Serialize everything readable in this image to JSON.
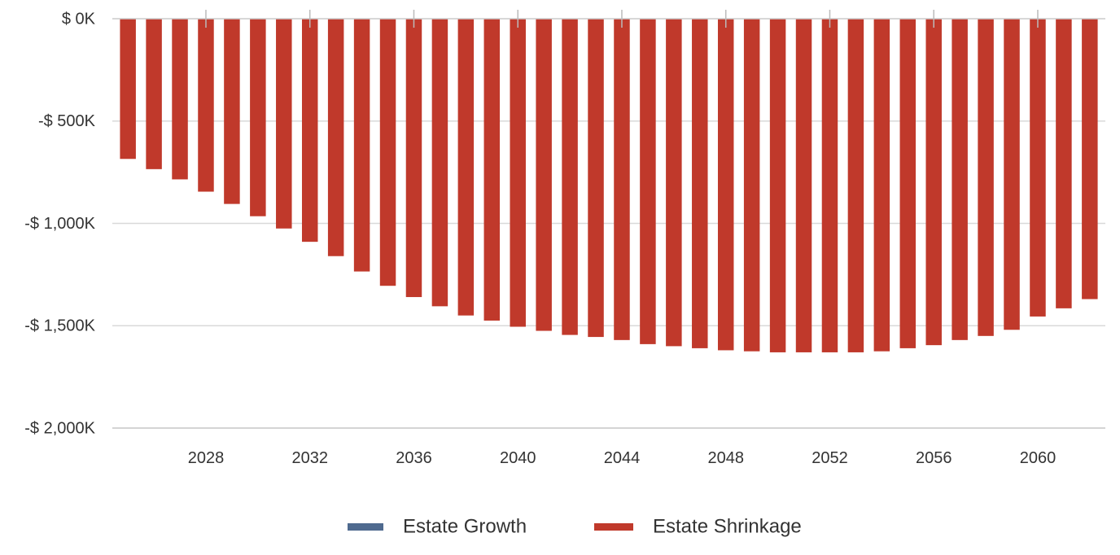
{
  "chart_data": {
    "type": "bar",
    "title": "",
    "xlabel": "",
    "ylabel": "",
    "ylim": [
      -2000,
      0
    ],
    "yticks": [
      0,
      -500,
      -1000,
      -1500,
      -2000
    ],
    "ytick_labels": [
      "$ 0K",
      "-$ 500K",
      "-$ 1,000K",
      "-$ 1,500K",
      "-$ 2,000K"
    ],
    "xticks": [
      2028,
      2032,
      2036,
      2040,
      2044,
      2048,
      2052,
      2056,
      2060
    ],
    "xtick_labels": [
      "2028",
      "2032",
      "2036",
      "2040",
      "2044",
      "2048",
      "2052",
      "2056",
      "2060"
    ],
    "x_range": [
      2024.4,
      2062.6
    ],
    "categories": [
      2025,
      2026,
      2027,
      2028,
      2029,
      2030,
      2031,
      2032,
      2033,
      2034,
      2035,
      2036,
      2037,
      2038,
      2039,
      2040,
      2041,
      2042,
      2043,
      2044,
      2045,
      2046,
      2047,
      2048,
      2049,
      2050,
      2051,
      2052,
      2053,
      2054,
      2055,
      2056,
      2057,
      2058,
      2059,
      2060,
      2061,
      2062
    ],
    "series": [
      {
        "name": "Estate Growth",
        "color": "#4f6a8f",
        "values": [
          0,
          0,
          0,
          0,
          0,
          0,
          0,
          0,
          0,
          0,
          0,
          0,
          0,
          0,
          0,
          0,
          0,
          0,
          0,
          0,
          0,
          0,
          0,
          0,
          0,
          0,
          0,
          0,
          0,
          0,
          0,
          0,
          0,
          0,
          0,
          0,
          0,
          0
        ]
      },
      {
        "name": "Estate Shrinkage",
        "color": "#c0392b",
        "values": [
          -685,
          -735,
          -785,
          -845,
          -905,
          -965,
          -1025,
          -1090,
          -1160,
          -1235,
          -1305,
          -1360,
          -1405,
          -1450,
          -1475,
          -1505,
          -1525,
          -1545,
          -1555,
          -1570,
          -1590,
          -1600,
          -1610,
          -1620,
          -1625,
          -1630,
          -1630,
          -1630,
          -1630,
          -1625,
          -1610,
          -1595,
          -1570,
          -1550,
          -1520,
          -1455,
          -1415,
          -1370
        ]
      }
    ],
    "legend": {
      "position": "bottom-center"
    }
  }
}
